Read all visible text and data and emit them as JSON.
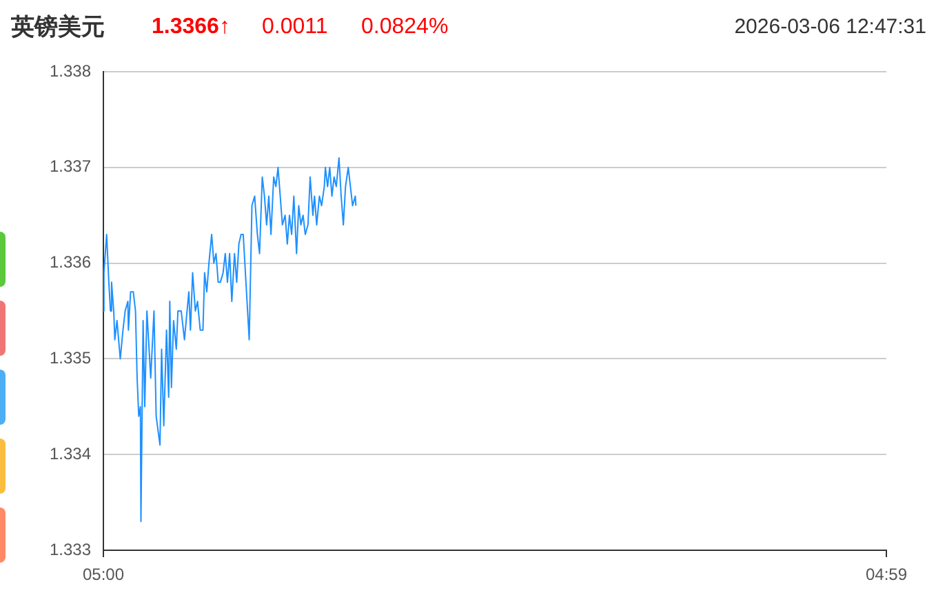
{
  "chart_data": {
    "type": "line",
    "title": "英镑美元",
    "annotations": [
      "1.3366↑",
      "0.0011",
      "0.0824%",
      "2026-03-06 12:47:31"
    ],
    "x": [
      "2026-03-06T05:00",
      "2026-03-06T05:01",
      "2026-03-06T05:06",
      "2026-03-06T05:10",
      "2026-03-06T05:13",
      "2026-03-06T05:15",
      "2026-03-06T05:19",
      "2026-03-06T05:21",
      "2026-03-06T05:25",
      "2026-03-06T05:31",
      "2026-03-06T05:36",
      "2026-03-06T05:40",
      "2026-03-06T05:45",
      "2026-03-06T05:46",
      "2026-03-06T05:50",
      "2026-03-06T05:55",
      "2026-03-06T05:59",
      "2026-03-06T06:02",
      "2026-03-06T06:05",
      "2026-03-06T06:08",
      "2026-03-06T06:09",
      "2026-03-06T06:13",
      "2026-03-06T06:16",
      "2026-03-06T06:20",
      "2026-03-06T06:27",
      "2026-03-06T06:33",
      "2026-03-06T06:37",
      "2026-03-06T06:44",
      "2026-03-06T06:47",
      "2026-03-06T06:51",
      "2026-03-06T06:56",
      "2026-03-06T07:00",
      "2026-03-06T07:02",
      "2026-03-06T07:05",
      "2026-03-06T07:09",
      "2026-03-06T07:14",
      "2026-03-06T07:17",
      "2026-03-06T07:23",
      "2026-03-06T07:29",
      "2026-03-06T07:37",
      "2026-03-06T07:40",
      "2026-03-06T07:44",
      "2026-03-06T07:49",
      "2026-03-06T07:53",
      "2026-03-06T07:58",
      "2026-03-06T08:03",
      "2026-03-06T08:06",
      "2026-03-06T08:10",
      "2026-03-06T08:14",
      "2026-03-06T08:19",
      "2026-03-06T08:23",
      "2026-03-06T08:27",
      "2026-03-06T08:31",
      "2026-03-06T08:35",
      "2026-03-06T08:40",
      "2026-03-06T08:44",
      "2026-03-06T08:48",
      "2026-03-06T08:52",
      "2026-03-06T08:56",
      "2026-03-06T09:01",
      "2026-03-06T09:05",
      "2026-03-06T09:09",
      "2026-03-06T09:13",
      "2026-03-06T09:17",
      "2026-03-06T09:22",
      "2026-03-06T09:28",
      "2026-03-06T09:33",
      "2026-03-06T09:38",
      "2026-03-06T09:43",
      "2026-03-06T09:47",
      "2026-03-06T09:52",
      "2026-03-06T09:56",
      "2026-03-06T10:00",
      "2026-03-06T10:04",
      "2026-03-06T10:08",
      "2026-03-06T10:13",
      "2026-03-06T10:17",
      "2026-03-06T10:21",
      "2026-03-06T10:25",
      "2026-03-06T10:29",
      "2026-03-06T10:34",
      "2026-03-06T10:38",
      "2026-03-06T10:42",
      "2026-03-06T10:46",
      "2026-03-06T10:50",
      "2026-03-06T10:55",
      "2026-03-06T10:59",
      "2026-03-06T11:03",
      "2026-03-06T11:07",
      "2026-03-06T11:11",
      "2026-03-06T11:16",
      "2026-03-06T11:20",
      "2026-03-06T11:25",
      "2026-03-06T11:28",
      "2026-03-06T11:32",
      "2026-03-06T11:37",
      "2026-03-06T11:41",
      "2026-03-06T11:46",
      "2026-03-06T11:48",
      "2026-03-06T11:52",
      "2026-03-06T11:56",
      "2026-03-06T12:00",
      "2026-03-06T12:04",
      "2026-03-06T12:08",
      "2026-03-06T12:13",
      "2026-03-06T12:17",
      "2026-03-06T12:21",
      "2026-03-06T12:25",
      "2026-03-06T12:30",
      "2026-03-06T12:34",
      "2026-03-06T12:38",
      "2026-03-06T12:43",
      "2026-03-06T12:44"
    ],
    "series": [
      {
        "color": "#1e90ff",
        "values": [
          1.3355,
          1.3359,
          1.3363,
          1.3358,
          1.3355,
          1.3358,
          1.3355,
          1.3352,
          1.3354,
          1.335,
          1.3353,
          1.3355,
          1.3356,
          1.3353,
          1.3357,
          1.3357,
          1.3355,
          1.3348,
          1.3344,
          1.3345,
          1.3333,
          1.3354,
          1.3345,
          1.3355,
          1.3348,
          1.3355,
          1.3344,
          1.3341,
          1.3351,
          1.3343,
          1.3353,
          1.3346,
          1.3356,
          1.3347,
          1.3354,
          1.3351,
          1.3355,
          1.3355,
          1.3352,
          1.3357,
          1.3353,
          1.3359,
          1.3355,
          1.3356,
          1.3353,
          1.3353,
          1.3359,
          1.3357,
          1.336,
          1.3363,
          1.336,
          1.3361,
          1.3358,
          1.3358,
          1.3359,
          1.3361,
          1.3358,
          1.3361,
          1.3356,
          1.3361,
          1.3358,
          1.3362,
          1.3363,
          1.3363,
          1.3358,
          1.3352,
          1.3366,
          1.3367,
          1.3363,
          1.3361,
          1.3369,
          1.3367,
          1.3364,
          1.3367,
          1.3363,
          1.3369,
          1.3368,
          1.337,
          1.3367,
          1.3364,
          1.3365,
          1.3362,
          1.3365,
          1.3363,
          1.3367,
          1.3361,
          1.3366,
          1.3364,
          1.3365,
          1.3363,
          1.3364,
          1.3369,
          1.3365,
          1.3367,
          1.3364,
          1.3367,
          1.3366,
          1.3368,
          1.337,
          1.3368,
          1.337,
          1.3367,
          1.3369,
          1.3368,
          1.3371,
          1.3367,
          1.3364,
          1.3368,
          1.337,
          1.3368,
          1.3366,
          1.3367,
          1.3366
        ]
      }
    ],
    "xlim": [
      "2026-03-06T05:00",
      "2026-03-07T04:59"
    ],
    "xticks": [
      {
        "value": "2026-03-06T05:00",
        "label": "05:00"
      },
      {
        "value": "2026-03-07T04:59",
        "label": "04:59"
      }
    ],
    "ylim": [
      1.333,
      1.338
    ],
    "yticks": [
      1.333,
      1.334,
      1.335,
      1.336,
      1.337,
      1.338
    ],
    "grid": "y",
    "legend": false,
    "marker": "none",
    "line_style": "solid"
  }
}
